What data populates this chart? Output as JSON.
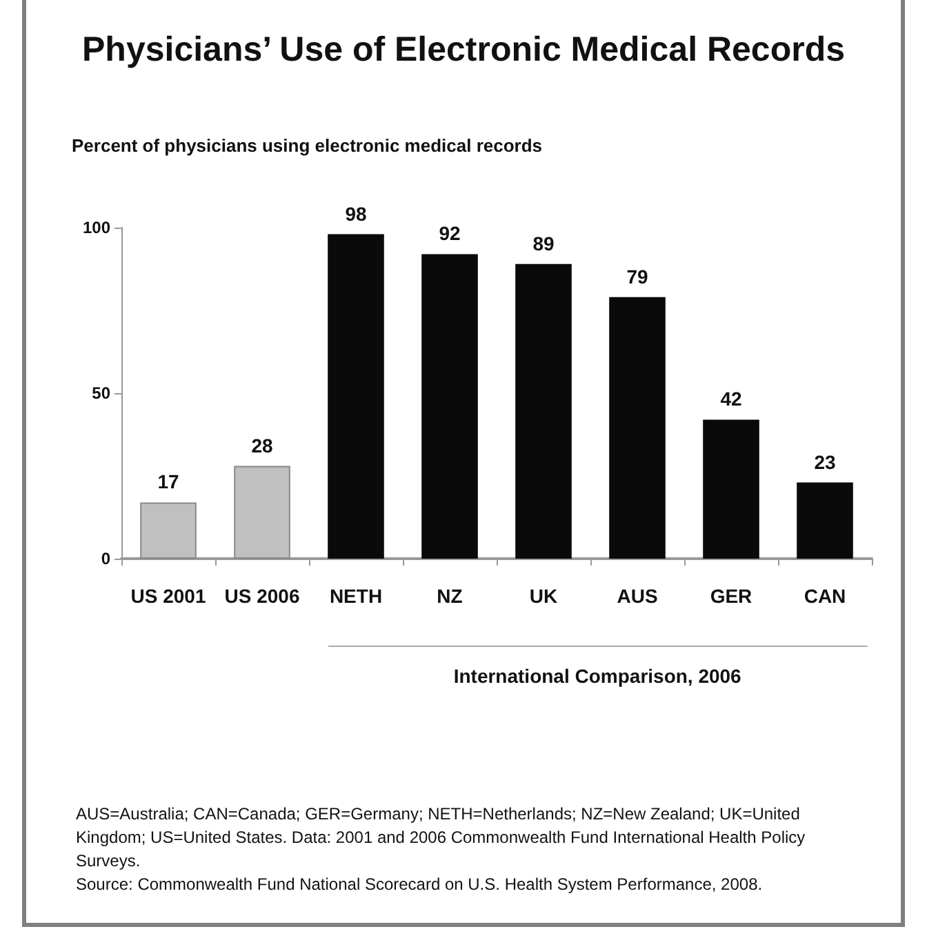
{
  "chart_data": {
    "type": "bar",
    "title": "Physicians’ Use of Electronic Medical Records",
    "ylabel": "Percent of physicians using electronic medical records",
    "categories": [
      "US 2001",
      "US 2006",
      "NETH",
      "NZ",
      "UK",
      "AUS",
      "GER",
      "CAN"
    ],
    "values": [
      17,
      28,
      98,
      92,
      89,
      79,
      42,
      23
    ],
    "colors": [
      "#c0c0c0",
      "#c0c0c0",
      "#0a0a0a",
      "#0a0a0a",
      "#0a0a0a",
      "#0a0a0a",
      "#0a0a0a",
      "#0a0a0a"
    ],
    "ylim": [
      0,
      100
    ],
    "yticks": [
      0,
      50,
      100
    ],
    "grid": false,
    "data_labels": true,
    "annotations": [
      {
        "text": "International Comparison, 2006"
      },
      "AUS=Australia; CAN=Canada; GER=Germany; NETH=Netherlands; NZ=New Zealand; UK=United Kingdom; US=United States. Data: 2001 and 2006 Commonwealth Fund International Health Policy Surveys.",
      "Source: Commonwealth Fund National Scorecard on U.S. Health System Performance, 2008."
    ]
  }
}
